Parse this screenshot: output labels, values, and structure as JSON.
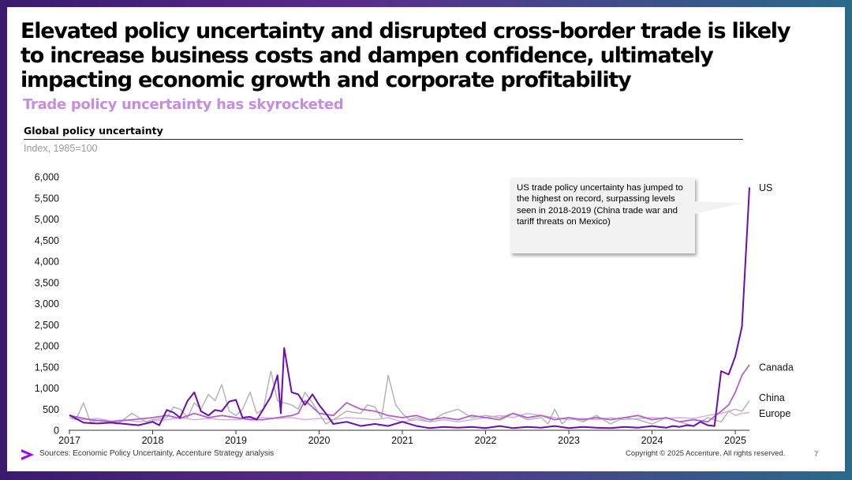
{
  "headline": "Elevated policy uncertainty and disrupted cross-border trade is likely to increase business costs and dampen confidence, ultimately impacting economic growth and corporate profitability",
  "subheadline": "Trade policy uncertainty has skyrocketed",
  "footer": {
    "sources": "Sources: Economic Policy Uncertainty, Accenture Strategy analysis",
    "copyright": "Copyright © 2025 Accenture. All rights reserved.",
    "page_number": "7"
  },
  "colors": {
    "US": "#6a0dad",
    "Canada": "#b160c8",
    "China": "#b4b4b4",
    "Europe": "#d2b0e0",
    "subheadline": "#c58ce0",
    "logo": "#a100ff"
  },
  "chart_data": {
    "type": "line",
    "title": "Global policy uncertainty",
    "subtitle": "Index, 1985=100",
    "xlabel": "",
    "ylabel": "",
    "ylim": [
      0,
      6000
    ],
    "xlim": [
      2017.0,
      2025.17
    ],
    "yticks": [
      "0",
      "500",
      "1,000",
      "1,500",
      "2,000",
      "2,500",
      "3,000",
      "3,500",
      "4,000",
      "4,500",
      "5,000",
      "5,500",
      "6,000"
    ],
    "xticks": [
      "2017",
      "2018",
      "2019",
      "2020",
      "2021",
      "2022",
      "2023",
      "2024",
      "2025"
    ],
    "annotation": "US trade policy uncertainty has jumped to the highest on record, surpassing levels seen in 2018-2019 (China trade war and tariff threats on Mexico)",
    "series": [
      {
        "name": "US",
        "values": [
          [
            2017.0,
            360
          ],
          [
            2017.17,
            180
          ],
          [
            2017.33,
            160
          ],
          [
            2017.5,
            180
          ],
          [
            2017.67,
            150
          ],
          [
            2017.83,
            120
          ],
          [
            2018.0,
            200
          ],
          [
            2018.08,
            120
          ],
          [
            2018.17,
            480
          ],
          [
            2018.25,
            420
          ],
          [
            2018.33,
            300
          ],
          [
            2018.42,
            700
          ],
          [
            2018.5,
            900
          ],
          [
            2018.58,
            450
          ],
          [
            2018.67,
            350
          ],
          [
            2018.75,
            480
          ],
          [
            2018.83,
            450
          ],
          [
            2018.92,
            680
          ],
          [
            2019.0,
            720
          ],
          [
            2019.08,
            300
          ],
          [
            2019.17,
            320
          ],
          [
            2019.25,
            250
          ],
          [
            2019.33,
            500
          ],
          [
            2019.42,
            800
          ],
          [
            2019.5,
            1300
          ],
          [
            2019.54,
            400
          ],
          [
            2019.58,
            1950
          ],
          [
            2019.67,
            900
          ],
          [
            2019.75,
            850
          ],
          [
            2019.83,
            600
          ],
          [
            2019.92,
            850
          ],
          [
            2020.0,
            600
          ],
          [
            2020.08,
            400
          ],
          [
            2020.17,
            150
          ],
          [
            2020.33,
            200
          ],
          [
            2020.5,
            100
          ],
          [
            2020.67,
            150
          ],
          [
            2020.83,
            100
          ],
          [
            2021.0,
            200
          ],
          [
            2021.17,
            100
          ],
          [
            2021.33,
            50
          ],
          [
            2021.5,
            80
          ],
          [
            2021.67,
            60
          ],
          [
            2021.83,
            80
          ],
          [
            2022.0,
            50
          ],
          [
            2022.17,
            100
          ],
          [
            2022.33,
            50
          ],
          [
            2022.5,
            80
          ],
          [
            2022.67,
            60
          ],
          [
            2022.83,
            100
          ],
          [
            2023.0,
            50
          ],
          [
            2023.17,
            80
          ],
          [
            2023.33,
            60
          ],
          [
            2023.5,
            50
          ],
          [
            2023.67,
            80
          ],
          [
            2023.83,
            60
          ],
          [
            2024.0,
            100
          ],
          [
            2024.08,
            80
          ],
          [
            2024.17,
            60
          ],
          [
            2024.25,
            100
          ],
          [
            2024.33,
            80
          ],
          [
            2024.42,
            120
          ],
          [
            2024.5,
            100
          ],
          [
            2024.58,
            200
          ],
          [
            2024.67,
            120
          ],
          [
            2024.75,
            100
          ],
          [
            2024.83,
            1400
          ],
          [
            2024.92,
            1320
          ],
          [
            2025.0,
            1750
          ],
          [
            2025.08,
            2450
          ],
          [
            2025.17,
            5750
          ]
        ]
      },
      {
        "name": "Canada",
        "values": [
          [
            2017.0,
            350
          ],
          [
            2017.25,
            250
          ],
          [
            2017.5,
            200
          ],
          [
            2017.75,
            250
          ],
          [
            2018.0,
            300
          ],
          [
            2018.17,
            350
          ],
          [
            2018.33,
            280
          ],
          [
            2018.5,
            400
          ],
          [
            2018.67,
            300
          ],
          [
            2018.83,
            350
          ],
          [
            2019.0,
            300
          ],
          [
            2019.17,
            250
          ],
          [
            2019.33,
            250
          ],
          [
            2019.5,
            300
          ],
          [
            2019.67,
            350
          ],
          [
            2019.75,
            400
          ],
          [
            2019.83,
            700
          ],
          [
            2019.92,
            550
          ],
          [
            2020.0,
            400
          ],
          [
            2020.17,
            350
          ],
          [
            2020.33,
            650
          ],
          [
            2020.5,
            500
          ],
          [
            2020.67,
            450
          ],
          [
            2020.83,
            350
          ],
          [
            2021.0,
            300
          ],
          [
            2021.17,
            350
          ],
          [
            2021.33,
            250
          ],
          [
            2021.5,
            300
          ],
          [
            2021.67,
            250
          ],
          [
            2021.83,
            350
          ],
          [
            2022.0,
            300
          ],
          [
            2022.17,
            250
          ],
          [
            2022.33,
            400
          ],
          [
            2022.5,
            300
          ],
          [
            2022.67,
            350
          ],
          [
            2022.83,
            250
          ],
          [
            2023.0,
            300
          ],
          [
            2023.17,
            250
          ],
          [
            2023.33,
            300
          ],
          [
            2023.5,
            250
          ],
          [
            2023.67,
            300
          ],
          [
            2023.83,
            350
          ],
          [
            2024.0,
            250
          ],
          [
            2024.17,
            300
          ],
          [
            2024.33,
            200
          ],
          [
            2024.5,
            250
          ],
          [
            2024.67,
            200
          ],
          [
            2024.83,
            450
          ],
          [
            2024.92,
            600
          ],
          [
            2025.0,
            900
          ],
          [
            2025.08,
            1300
          ],
          [
            2025.17,
            1550
          ]
        ]
      },
      {
        "name": "China",
        "values": [
          [
            2017.0,
            300
          ],
          [
            2017.08,
            250
          ],
          [
            2017.17,
            650
          ],
          [
            2017.25,
            200
          ],
          [
            2017.42,
            250
          ],
          [
            2017.58,
            150
          ],
          [
            2017.75,
            400
          ],
          [
            2017.92,
            200
          ],
          [
            2018.0,
            250
          ],
          [
            2018.17,
            300
          ],
          [
            2018.25,
            550
          ],
          [
            2018.33,
            500
          ],
          [
            2018.42,
            300
          ],
          [
            2018.5,
            650
          ],
          [
            2018.58,
            500
          ],
          [
            2018.67,
            850
          ],
          [
            2018.75,
            700
          ],
          [
            2018.83,
            1080
          ],
          [
            2018.92,
            450
          ],
          [
            2019.0,
            350
          ],
          [
            2019.08,
            500
          ],
          [
            2019.17,
            900
          ],
          [
            2019.25,
            400
          ],
          [
            2019.33,
            500
          ],
          [
            2019.42,
            1400
          ],
          [
            2019.5,
            700
          ],
          [
            2019.58,
            650
          ],
          [
            2019.67,
            600
          ],
          [
            2019.75,
            500
          ],
          [
            2019.83,
            900
          ],
          [
            2019.92,
            650
          ],
          [
            2020.0,
            400
          ],
          [
            2020.08,
            150
          ],
          [
            2020.17,
            250
          ],
          [
            2020.33,
            450
          ],
          [
            2020.5,
            400
          ],
          [
            2020.58,
            600
          ],
          [
            2020.67,
            550
          ],
          [
            2020.75,
            300
          ],
          [
            2020.83,
            1300
          ],
          [
            2020.92,
            600
          ],
          [
            2021.0,
            400
          ],
          [
            2021.08,
            250
          ],
          [
            2021.17,
            300
          ],
          [
            2021.33,
            200
          ],
          [
            2021.5,
            400
          ],
          [
            2021.67,
            500
          ],
          [
            2021.75,
            400
          ],
          [
            2021.83,
            300
          ],
          [
            2022.0,
            350
          ],
          [
            2022.17,
            300
          ],
          [
            2022.33,
            400
          ],
          [
            2022.5,
            250
          ],
          [
            2022.67,
            300
          ],
          [
            2022.75,
            150
          ],
          [
            2022.83,
            500
          ],
          [
            2022.92,
            150
          ],
          [
            2023.0,
            300
          ],
          [
            2023.17,
            200
          ],
          [
            2023.33,
            350
          ],
          [
            2023.5,
            150
          ],
          [
            2023.67,
            300
          ],
          [
            2023.83,
            250
          ],
          [
            2024.0,
            150
          ],
          [
            2024.17,
            300
          ],
          [
            2024.33,
            200
          ],
          [
            2024.5,
            100
          ],
          [
            2024.67,
            300
          ],
          [
            2024.83,
            200
          ],
          [
            2024.92,
            450
          ],
          [
            2025.0,
            500
          ],
          [
            2025.08,
            450
          ],
          [
            2025.17,
            700
          ]
        ]
      },
      {
        "name": "Europe",
        "values": [
          [
            2017.0,
            300
          ],
          [
            2017.17,
            250
          ],
          [
            2017.33,
            280
          ],
          [
            2017.5,
            220
          ],
          [
            2017.67,
            250
          ],
          [
            2017.83,
            200
          ],
          [
            2018.0,
            220
          ],
          [
            2018.17,
            250
          ],
          [
            2018.33,
            300
          ],
          [
            2018.5,
            250
          ],
          [
            2018.67,
            280
          ],
          [
            2018.83,
            250
          ],
          [
            2019.0,
            250
          ],
          [
            2019.17,
            280
          ],
          [
            2019.33,
            300
          ],
          [
            2019.5,
            280
          ],
          [
            2019.67,
            300
          ],
          [
            2019.83,
            250
          ],
          [
            2020.0,
            280
          ],
          [
            2020.17,
            250
          ],
          [
            2020.33,
            300
          ],
          [
            2020.5,
            280
          ],
          [
            2020.67,
            250
          ],
          [
            2020.83,
            300
          ],
          [
            2021.0,
            200
          ],
          [
            2021.17,
            250
          ],
          [
            2021.33,
            200
          ],
          [
            2021.5,
            250
          ],
          [
            2021.67,
            200
          ],
          [
            2021.83,
            250
          ],
          [
            2022.0,
            300
          ],
          [
            2022.17,
            350
          ],
          [
            2022.33,
            300
          ],
          [
            2022.5,
            400
          ],
          [
            2022.67,
            350
          ],
          [
            2022.83,
            300
          ],
          [
            2023.0,
            250
          ],
          [
            2023.17,
            280
          ],
          [
            2023.33,
            250
          ],
          [
            2023.5,
            300
          ],
          [
            2023.67,
            250
          ],
          [
            2023.83,
            280
          ],
          [
            2024.0,
            300
          ],
          [
            2024.17,
            280
          ],
          [
            2024.33,
            300
          ],
          [
            2024.5,
            280
          ],
          [
            2024.67,
            350
          ],
          [
            2024.83,
            400
          ],
          [
            2024.92,
            450
          ],
          [
            2025.0,
            350
          ],
          [
            2025.08,
            400
          ],
          [
            2025.17,
            420
          ]
        ]
      }
    ]
  }
}
